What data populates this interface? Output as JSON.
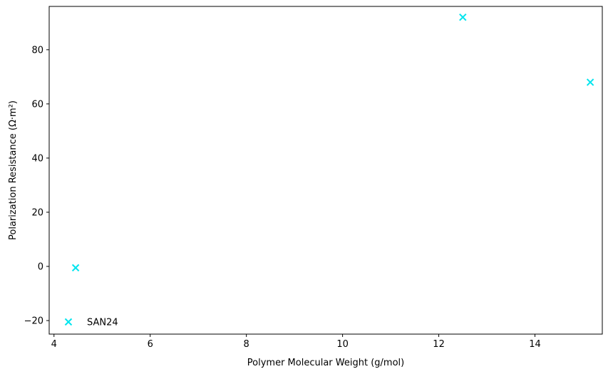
{
  "chart_data": {
    "type": "scatter",
    "title": "",
    "xlabel": "Polymer Molecular Weight (g/mol)",
    "ylabel": "Polarization Resistance (Ω·m²)",
    "xlim": [
      3.9,
      15.4
    ],
    "ylim": [
      -25,
      96
    ],
    "x_ticks": [
      4,
      6,
      8,
      10,
      12,
      14
    ],
    "y_ticks": [
      -20,
      0,
      20,
      40,
      60,
      80
    ],
    "x_tick_labels": [
      "4",
      "6",
      "8",
      "10",
      "12",
      "14"
    ],
    "y_tick_labels": [
      "−20",
      "0",
      "20",
      "40",
      "60",
      "80"
    ],
    "grid": false,
    "marker": "x",
    "marker_color": "#00e5ee",
    "series": [
      {
        "points": [
          {
            "x": 4.3,
            "y": -20.5
          },
          {
            "x": 4.45,
            "y": -0.5
          },
          {
            "x": 12.5,
            "y": 92
          },
          {
            "x": 15.15,
            "y": 68
          }
        ]
      }
    ],
    "annotations": [
      {
        "text": "SAN24",
        "x": 4.3,
        "y": -20.5
      }
    ]
  }
}
